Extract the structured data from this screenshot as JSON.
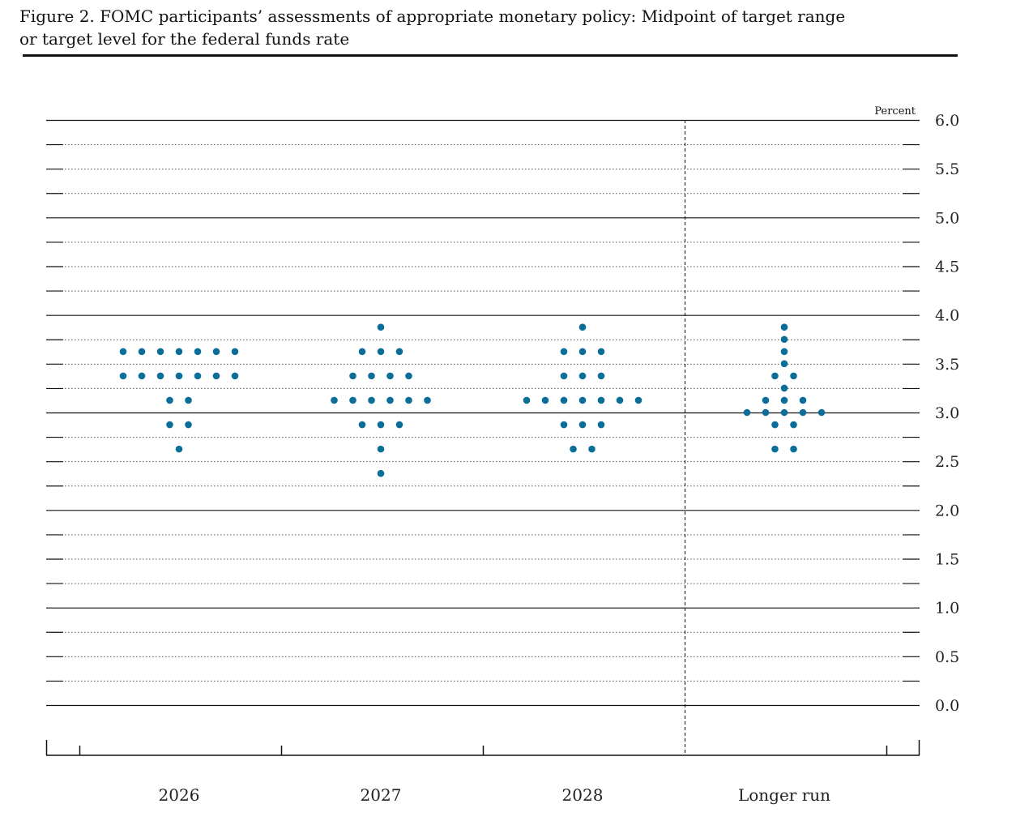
{
  "header": {
    "title": "Figure 2. FOMC participants’ assessments of appropriate monetary policy: Midpoint of target range\nor target level for the federal funds rate"
  },
  "colors": {
    "dot": "#0b6e99",
    "line": "#111111"
  },
  "chart_data": {
    "type": "scatter",
    "title": "Figure 2. FOMC participants’ assessments of appropriate monetary policy: Midpoint of target range or target level for the federal funds rate",
    "ylabel": "Percent",
    "ylim": [
      0,
      6
    ],
    "yticks": [
      "0.0",
      "0.5",
      "1.0",
      "1.5",
      "2.0",
      "2.5",
      "3.0",
      "3.5",
      "4.0",
      "4.5",
      "5.0",
      "5.5",
      "6.0"
    ],
    "grid": true,
    "categories": [
      "2026",
      "2027",
      "2028",
      "Longer run"
    ],
    "distribution": [
      [
        {
          "rate": 3.625,
          "count": 7
        },
        {
          "rate": 3.375,
          "count": 7
        },
        {
          "rate": 3.125,
          "count": 2
        },
        {
          "rate": 2.875,
          "count": 2
        },
        {
          "rate": 2.625,
          "count": 1
        }
      ],
      [
        {
          "rate": 3.875,
          "count": 1
        },
        {
          "rate": 3.625,
          "count": 3
        },
        {
          "rate": 3.375,
          "count": 4
        },
        {
          "rate": 3.125,
          "count": 6
        },
        {
          "rate": 2.875,
          "count": 3
        },
        {
          "rate": 2.625,
          "count": 1
        },
        {
          "rate": 2.375,
          "count": 1
        }
      ],
      [
        {
          "rate": 3.875,
          "count": 1
        },
        {
          "rate": 3.625,
          "count": 3
        },
        {
          "rate": 3.375,
          "count": 3
        },
        {
          "rate": 3.125,
          "count": 7
        },
        {
          "rate": 2.875,
          "count": 3
        },
        {
          "rate": 2.625,
          "count": 2
        }
      ],
      [
        {
          "rate": 3.875,
          "count": 1
        },
        {
          "rate": 3.75,
          "count": 1
        },
        {
          "rate": 3.625,
          "count": 1
        },
        {
          "rate": 3.5,
          "count": 1
        },
        {
          "rate": 3.375,
          "count": 2
        },
        {
          "rate": 3.25,
          "count": 1
        },
        {
          "rate": 3.125,
          "count": 3
        },
        {
          "rate": 3.0,
          "count": 5
        },
        {
          "rate": 2.875,
          "count": 2
        },
        {
          "rate": 2.625,
          "count": 2
        }
      ]
    ]
  }
}
